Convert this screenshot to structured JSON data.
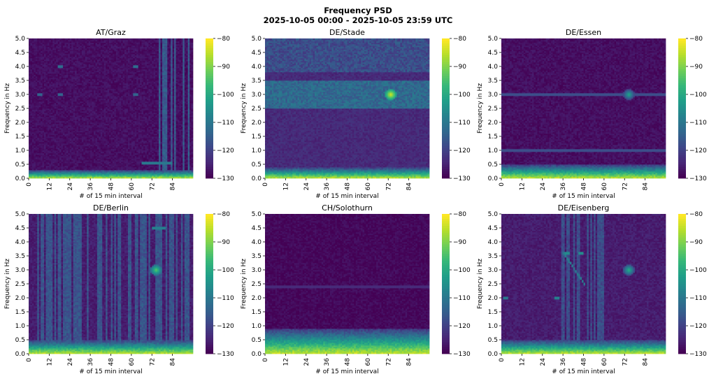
{
  "figure": {
    "title": "Frequency PSD",
    "subtitle": "2025-10-05 00:00 - 2025-10-05 23:59 UTC"
  },
  "colormap": {
    "name": "viridis",
    "stops": [
      "#440154",
      "#482878",
      "#3e4989",
      "#31688e",
      "#26828e",
      "#1f9e89",
      "#35b779",
      "#6ece58",
      "#b5de2b",
      "#fde725"
    ]
  },
  "chart_data": [
    {
      "type": "heatmap",
      "title": "AT/Graz",
      "xlabel": "# of 15 min interval",
      "ylabel": "Frequency in Hz",
      "xlim": [
        0,
        96
      ],
      "ylim": [
        0,
        5
      ],
      "x_ticks": [
        "0",
        "12",
        "24",
        "36",
        "48",
        "60",
        "72",
        "84"
      ],
      "y_ticks": [
        "0.0",
        "0.5",
        "1.0",
        "1.5",
        "2.0",
        "2.5",
        "3.0",
        "3.5",
        "4.0",
        "4.5",
        "5.0"
      ],
      "colorbar_range": [
        -130,
        -80
      ],
      "colorbar_ticks": [
        "−80",
        "−90",
        "−100",
        "−110",
        "−120",
        "−130"
      ],
      "background_level": -128,
      "low_freq_band_top_hz": 0.3,
      "features": [
        {
          "kind": "vertical-stripes",
          "x_range": [
            76,
            96
          ],
          "level": -116
        },
        {
          "kind": "spot",
          "x": 18,
          "y": 4.0,
          "level": -112
        },
        {
          "kind": "spot",
          "x": 62,
          "y": 4.0,
          "level": -112
        },
        {
          "kind": "spot",
          "x": 6,
          "y": 3.0,
          "level": -114
        },
        {
          "kind": "spot",
          "x": 18,
          "y": 3.0,
          "level": -114
        },
        {
          "kind": "spot",
          "x": 62,
          "y": 3.0,
          "level": -114
        },
        {
          "kind": "line",
          "x_range": [
            66,
            84
          ],
          "y": 0.55,
          "level": -110
        }
      ]
    },
    {
      "type": "heatmap",
      "title": "DE/Stade",
      "xlabel": "# of 15 min interval",
      "ylabel": "Frequency in Hz",
      "xlim": [
        0,
        96
      ],
      "ylim": [
        0,
        5
      ],
      "x_ticks": [
        "0",
        "12",
        "24",
        "36",
        "48",
        "60",
        "72",
        "84"
      ],
      "y_ticks": [
        "0.0",
        "0.5",
        "1.0",
        "1.5",
        "2.0",
        "2.5",
        "3.0",
        "3.5",
        "4.0",
        "4.5",
        "5.0"
      ],
      "colorbar_range": [
        -130,
        -80
      ],
      "colorbar_ticks": [
        "−80",
        "−90",
        "−100",
        "−110",
        "−120",
        "−130"
      ],
      "background_level": -124,
      "low_freq_band_top_hz": 0.4,
      "features": [
        {
          "kind": "band",
          "x_range": [
            0,
            96
          ],
          "y_range": [
            2.5,
            3.5
          ],
          "level": -113
        },
        {
          "kind": "band",
          "x_range": [
            0,
            96
          ],
          "y_range": [
            3.8,
            5.0
          ],
          "level": -118
        },
        {
          "kind": "peak",
          "x": 73,
          "y": 3.0,
          "level": -82
        }
      ]
    },
    {
      "type": "heatmap",
      "title": "DE/Essen",
      "xlabel": "# of 15 min interval",
      "ylabel": "Frequency in Hz",
      "xlim": [
        0,
        96
      ],
      "ylim": [
        0,
        5
      ],
      "x_ticks": [
        "0",
        "12",
        "24",
        "36",
        "48",
        "60",
        "72",
        "84"
      ],
      "y_ticks": [
        "0.0",
        "0.5",
        "1.0",
        "1.5",
        "2.0",
        "2.5",
        "3.0",
        "3.5",
        "4.0",
        "4.5",
        "5.0"
      ],
      "colorbar_range": [
        -130,
        -80
      ],
      "colorbar_ticks": [
        "−80",
        "−90",
        "−100",
        "−110",
        "−120",
        "−130"
      ],
      "background_level": -128,
      "low_freq_band_top_hz": 0.5,
      "features": [
        {
          "kind": "line",
          "x_range": [
            0,
            96
          ],
          "y": 3.0,
          "level": -118
        },
        {
          "kind": "line",
          "x_range": [
            0,
            96
          ],
          "y": 1.0,
          "level": -118
        },
        {
          "kind": "peak",
          "x": 74,
          "y": 3.0,
          "level": -100
        }
      ]
    },
    {
      "type": "heatmap",
      "title": "DE/Berlin",
      "xlabel": "# of 15 min interval",
      "ylabel": "Frequency in Hz",
      "xlim": [
        0,
        96
      ],
      "ylim": [
        0,
        5
      ],
      "x_ticks": [
        "0",
        "12",
        "24",
        "36",
        "48",
        "60",
        "72",
        "84"
      ],
      "y_ticks": [
        "0.0",
        "0.5",
        "1.0",
        "1.5",
        "2.0",
        "2.5",
        "3.0",
        "3.5",
        "4.0",
        "4.5",
        "5.0"
      ],
      "colorbar_range": [
        -130,
        -80
      ],
      "colorbar_ticks": [
        "−80",
        "−90",
        "−100",
        "−110",
        "−120",
        "−130"
      ],
      "background_level": -126,
      "low_freq_band_top_hz": 0.5,
      "features": [
        {
          "kind": "vertical-stripes",
          "x_range": [
            0,
            96
          ],
          "level": -117
        },
        {
          "kind": "peak",
          "x": 74,
          "y": 3.0,
          "level": -92
        },
        {
          "kind": "line",
          "x_range": [
            72,
            80
          ],
          "y": 4.5,
          "level": -108
        }
      ]
    },
    {
      "type": "heatmap",
      "title": "CH/Solothurn",
      "xlabel": "# of 15 min interval",
      "ylabel": "Frequency in Hz",
      "xlim": [
        0,
        96
      ],
      "ylim": [
        0,
        5
      ],
      "x_ticks": [
        "0",
        "12",
        "24",
        "36",
        "48",
        "60",
        "72",
        "84"
      ],
      "y_ticks": [
        "0.0",
        "0.5",
        "1.0",
        "1.5",
        "2.0",
        "2.5",
        "3.0",
        "3.5",
        "4.0",
        "4.5",
        "5.0"
      ],
      "colorbar_range": [
        -130,
        -80
      ],
      "colorbar_ticks": [
        "−80",
        "−90",
        "−100",
        "−110",
        "−120",
        "−130"
      ],
      "background_level": -129,
      "low_freq_band_top_hz": 0.9,
      "features": [
        {
          "kind": "line",
          "x_range": [
            0,
            96
          ],
          "y": 2.4,
          "level": -124
        }
      ]
    },
    {
      "type": "heatmap",
      "title": "DE/Eisenberg",
      "xlabel": "# of 15 min interval",
      "ylabel": "Frequency in Hz",
      "xlim": [
        0,
        96
      ],
      "ylim": [
        0,
        5
      ],
      "x_ticks": [
        "0",
        "12",
        "24",
        "36",
        "48",
        "60",
        "72",
        "84"
      ],
      "y_ticks": [
        "0.0",
        "0.5",
        "1.0",
        "1.5",
        "2.0",
        "2.5",
        "3.0",
        "3.5",
        "4.0",
        "4.5",
        "5.0"
      ],
      "colorbar_range": [
        -130,
        -80
      ],
      "colorbar_ticks": [
        "−80",
        "−90",
        "−100",
        "−110",
        "−120",
        "−130"
      ],
      "background_level": -126,
      "low_freq_band_top_hz": 0.5,
      "features": [
        {
          "kind": "vertical-stripes",
          "x_range": [
            30,
            60
          ],
          "level": -118
        },
        {
          "kind": "spot",
          "x": 38,
          "y": 3.6,
          "level": -106
        },
        {
          "kind": "spot",
          "x": 46,
          "y": 3.6,
          "level": -106
        },
        {
          "kind": "spot",
          "x": 32,
          "y": 2.0,
          "level": -108
        },
        {
          "kind": "spot",
          "x": 2,
          "y": 2.0,
          "level": -110
        },
        {
          "kind": "diagonal",
          "from": [
            36,
            3.6
          ],
          "to": [
            48,
            2.5
          ],
          "level": -110
        },
        {
          "kind": "peak",
          "x": 74,
          "y": 3.0,
          "level": -98
        }
      ]
    }
  ]
}
